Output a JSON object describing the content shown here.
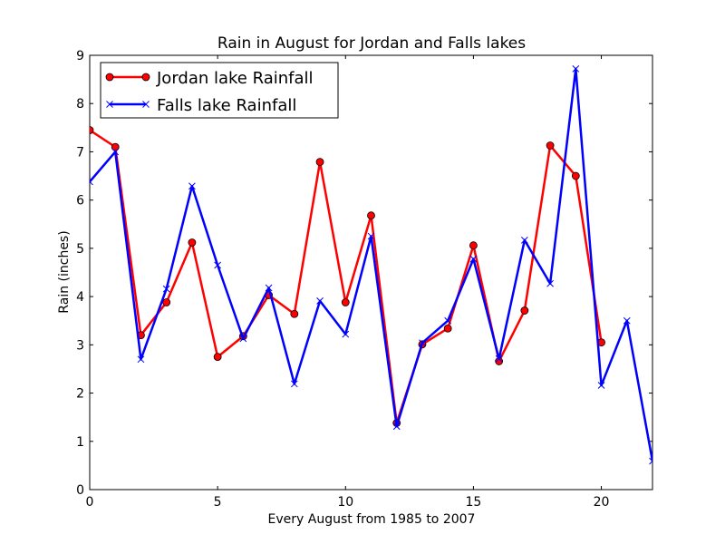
{
  "chart_data": {
    "type": "line",
    "title": "Rain in August for Jordan and Falls lakes",
    "xlabel": "Every August from 1985 to 2007",
    "ylabel": "Rain (inches)",
    "xlim": [
      0,
      22
    ],
    "ylim": [
      0,
      9
    ],
    "xticks": [
      0,
      5,
      10,
      15,
      20
    ],
    "yticks": [
      0,
      1,
      2,
      3,
      4,
      5,
      6,
      7,
      8,
      9
    ],
    "grid": false,
    "legend_position": "top-left",
    "series": [
      {
        "name": "Jordan lake Rainfall",
        "color": "#ff0000",
        "marker": "circle",
        "x": [
          0,
          1,
          2,
          3,
          4,
          5,
          6,
          7,
          8,
          9,
          10,
          11,
          12,
          13,
          14,
          15,
          16,
          17,
          18,
          19,
          20
        ],
        "values": [
          7.45,
          7.1,
          3.2,
          3.88,
          5.12,
          2.75,
          3.18,
          4.03,
          3.64,
          6.79,
          3.88,
          5.68,
          1.38,
          3.01,
          3.34,
          5.06,
          2.66,
          3.71,
          7.13,
          6.5,
          3.05
        ]
      },
      {
        "name": "Falls lake Rainfall",
        "color": "#0000ff",
        "marker": "x",
        "x": [
          0,
          1,
          2,
          3,
          4,
          5,
          6,
          7,
          8,
          9,
          10,
          11,
          12,
          13,
          14,
          15,
          16,
          17,
          18,
          19,
          20,
          21,
          22
        ],
        "values": [
          6.38,
          7.0,
          2.7,
          4.16,
          6.29,
          4.65,
          3.13,
          4.18,
          2.19,
          3.91,
          3.22,
          5.25,
          1.31,
          3.04,
          3.5,
          4.78,
          2.71,
          5.17,
          4.27,
          8.72,
          2.16,
          3.5,
          0.59
        ]
      }
    ]
  }
}
